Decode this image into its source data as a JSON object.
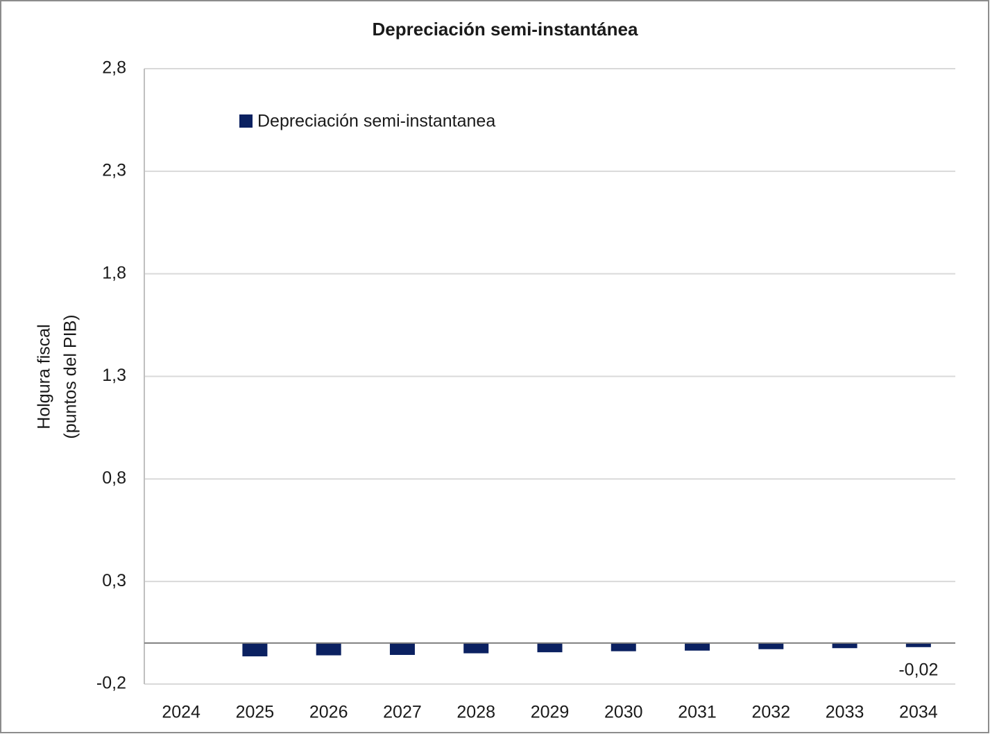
{
  "chart_data": {
    "type": "bar",
    "title": "Depreciación semi-instantánea",
    "y_label": [
      "Holgura fiscal",
      "(puntos del PIB)"
    ],
    "categories": [
      "2024",
      "2025",
      "2026",
      "2027",
      "2028",
      "2029",
      "2030",
      "2031",
      "2032",
      "2033",
      "2034"
    ],
    "series": [
      {
        "name": "Depreciación semi-instantanea",
        "color": "#0b2161",
        "values": [
          0,
          -0.065,
          -0.06,
          -0.058,
          -0.05,
          -0.045,
          -0.04,
          -0.037,
          -0.03,
          -0.025,
          -0.02
        ],
        "value_labels": [
          null,
          null,
          null,
          null,
          null,
          null,
          null,
          null,
          null,
          null,
          "-0,02"
        ]
      }
    ],
    "ylim": [
      -0.2,
      2.8
    ],
    "yticks": [
      {
        "value": -0.2,
        "label": "-0,2"
      },
      {
        "value": 0.3,
        "label": "0,3"
      },
      {
        "value": 0.8,
        "label": "0,8"
      },
      {
        "value": 1.3,
        "label": "1,3"
      },
      {
        "value": 1.8,
        "label": "1,8"
      },
      {
        "value": 2.3,
        "label": "2,3"
      },
      {
        "value": 2.8,
        "label": "2,8"
      }
    ],
    "grid": true,
    "legend": "top-left"
  }
}
